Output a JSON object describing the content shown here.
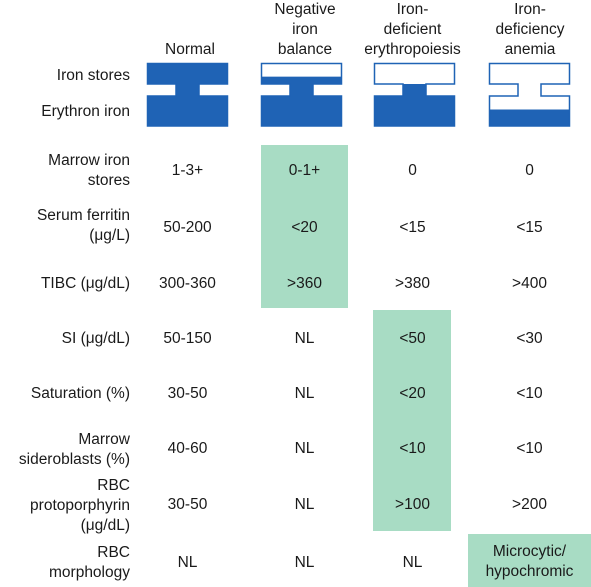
{
  "colors": {
    "iron_fill": "#1f63b5",
    "highlight": "#a8dcc4",
    "text": "#1a1a1a"
  },
  "columns": {
    "normal": "Normal",
    "negative": [
      "Negative",
      "iron",
      "balance"
    ],
    "deficient_ep": [
      "Iron-",
      "deficient",
      "erythropoiesis"
    ],
    "anemia": [
      "Iron-",
      "deficiency",
      "anemia"
    ]
  },
  "compartments": {
    "iron_stores": "Iron stores",
    "erythron_iron": "Erythron iron",
    "stores_fill": [
      1.0,
      0.35,
      0.0,
      0.0
    ],
    "erythron_fill": [
      1.0,
      1.0,
      1.0,
      0.55
    ]
  },
  "rows": {
    "marrow_stores": {
      "label": [
        "Marrow iron",
        "stores"
      ],
      "values": [
        "1-3+",
        "0-1+",
        "0",
        "0"
      ]
    },
    "serum_ferritin": {
      "label": [
        "Serum ferritin",
        "(μg/L)"
      ],
      "values": [
        "50-200",
        "<20",
        "<15",
        "<15"
      ]
    },
    "tibc": {
      "label": "TIBC (μg/dL)",
      "values": [
        "300-360",
        ">360",
        ">380",
        ">400"
      ]
    },
    "si": {
      "label": "SI (μg/dL)",
      "values": [
        "50-150",
        "NL",
        "<50",
        "<30"
      ]
    },
    "saturation": {
      "label": "Saturation (%)",
      "values": [
        "30-50",
        "NL",
        "<20",
        "<10"
      ]
    },
    "sideroblasts": {
      "label": [
        "Marrow",
        "sideroblasts (%)"
      ],
      "values": [
        "40-60",
        "NL",
        "<10",
        "<10"
      ]
    },
    "protoporphyrin": {
      "label": [
        "RBC",
        "protoporphyrin",
        "(μg/dL)"
      ],
      "values": [
        "30-50",
        "NL",
        ">100",
        ">200"
      ]
    },
    "morphology": {
      "label": [
        "RBC",
        "morphology"
      ],
      "values": [
        "NL",
        "NL",
        "NL",
        [
          "Microcytic/",
          "hypochromic"
        ]
      ]
    }
  }
}
